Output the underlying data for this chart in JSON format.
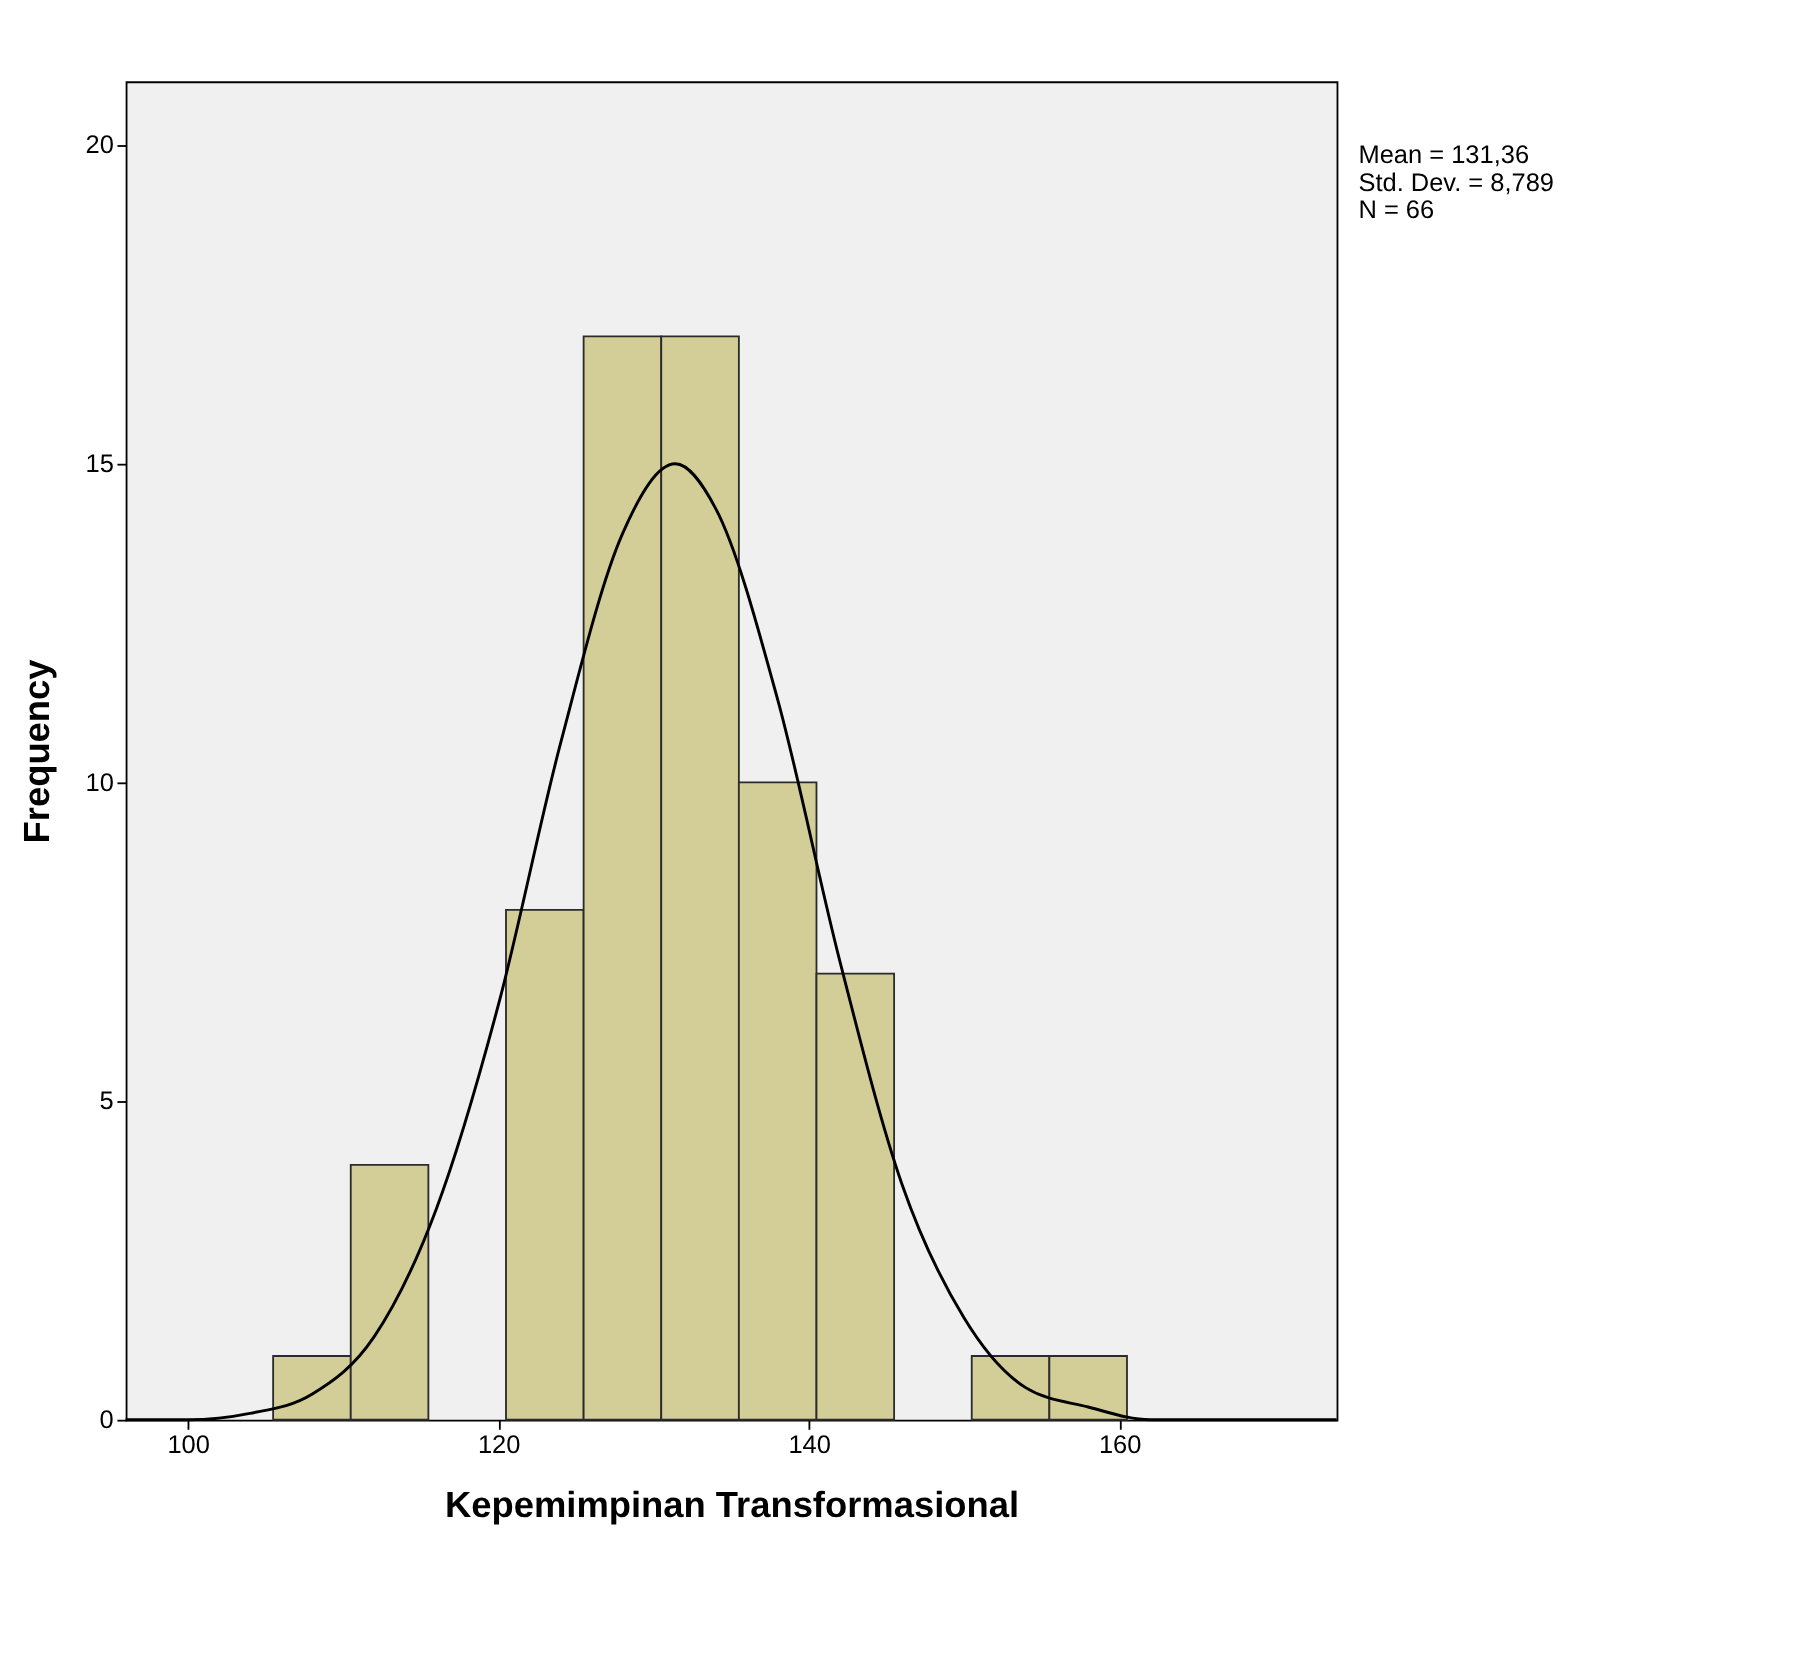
{
  "chart_data": {
    "type": "histogram",
    "xlabel": "Kepemimpinan Transformasional",
    "ylabel": "Frequency",
    "bins": [
      105.5,
      110.5,
      115.5,
      120.5,
      125.5,
      130.5,
      135.5,
      140.5,
      145.5,
      150.5,
      155.5,
      160.5
    ],
    "values": [
      1,
      4,
      0,
      8,
      17,
      17,
      10,
      7,
      0,
      1,
      1
    ],
    "color": "#d3ce97",
    "series": [
      {
        "type": "line",
        "color": "#000000",
        "x": [
          96,
          100,
          104,
          108,
          112,
          116,
          120,
          124,
          128,
          131.4,
          134,
          138,
          142,
          146,
          150,
          154,
          158,
          162,
          166,
          170,
          174
        ],
        "values": [
          0.0,
          0.0,
          0.1,
          0.4,
          1.3,
          3.3,
          6.5,
          10.6,
          13.9,
          15.0,
          14.3,
          11.3,
          7.2,
          3.7,
          1.6,
          0.5,
          0.2,
          0.0,
          0.0,
          0.0,
          0.0
        ]
      }
    ],
    "xlim": [
      96,
      174
    ],
    "ylim": [
      0,
      21
    ],
    "xticks": [
      100,
      120,
      140,
      160
    ],
    "yticks": [
      0,
      5,
      10,
      15,
      20
    ],
    "grid": false,
    "annotations": [
      "Mean = 131,36",
      "Std. Dev. = 8,789",
      "N = 66"
    ]
  }
}
